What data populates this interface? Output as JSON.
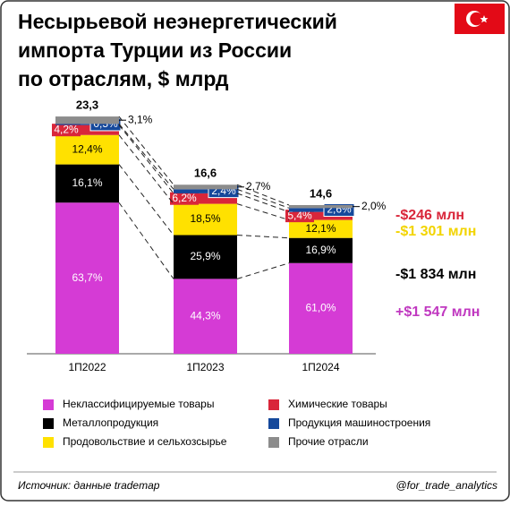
{
  "chart_data": {
    "type": "stacked_bar",
    "title": [
      "Несырьевой неэнергетический",
      "импорта Турции из России",
      "по отраслям, $ млрд"
    ],
    "categories": [
      "1П2022",
      "1П2023",
      "1П2024"
    ],
    "totals": {
      "values": [
        23.3,
        16.6,
        14.6
      ],
      "value_labels": [
        "23,3",
        "16,6",
        "14,6"
      ]
    },
    "series": [
      {
        "name": "Неклассифицируемые товары",
        "color": "#d53bd5",
        "values": [
          63.7,
          44.3,
          61.0
        ],
        "value_labels": [
          "63,7%",
          "44,3%",
          "61,0%"
        ]
      },
      {
        "name": "Металлопродукция",
        "color": "#000000",
        "values": [
          16.1,
          25.9,
          16.9
        ],
        "value_labels": [
          "16,1%",
          "25,9%",
          "16,9%"
        ]
      },
      {
        "name": "Продовольствие и сельхозсырье",
        "color": "#ffe100",
        "values": [
          12.4,
          18.5,
          12.1
        ],
        "value_labels": [
          "12,4%",
          "18,5%",
          "12,1%"
        ]
      },
      {
        "name": "Химические товары",
        "color": "#d9263a",
        "values": [
          4.2,
          6.2,
          5.4
        ],
        "value_labels": [
          "4,2%",
          "6,2%",
          "5,4%"
        ]
      },
      {
        "name": "Продукция машиностроения",
        "color": "#15489b",
        "values": [
          0.5,
          2.4,
          2.6
        ],
        "value_labels": [
          "0,5%",
          "2,4%",
          "2,6%"
        ]
      },
      {
        "name": "Прочие отрасли",
        "color": "#8c8c8c",
        "values": [
          3.1,
          2.7,
          2.0
        ],
        "value_labels": [
          "3,1%",
          "2,7%",
          "2,0%"
        ]
      }
    ],
    "annotations": [
      {
        "text": "-$246 млн",
        "color": "#d9263a"
      },
      {
        "text": "-$1 301 млн",
        "color": "#f2d400"
      },
      {
        "text": "-$1 834 млн",
        "color": "#000000"
      },
      {
        "text": "+$1 547 млн",
        "color": "#c038c0"
      }
    ],
    "source": "Источник: данные trademap",
    "handle": "@for_trade_analytics"
  }
}
